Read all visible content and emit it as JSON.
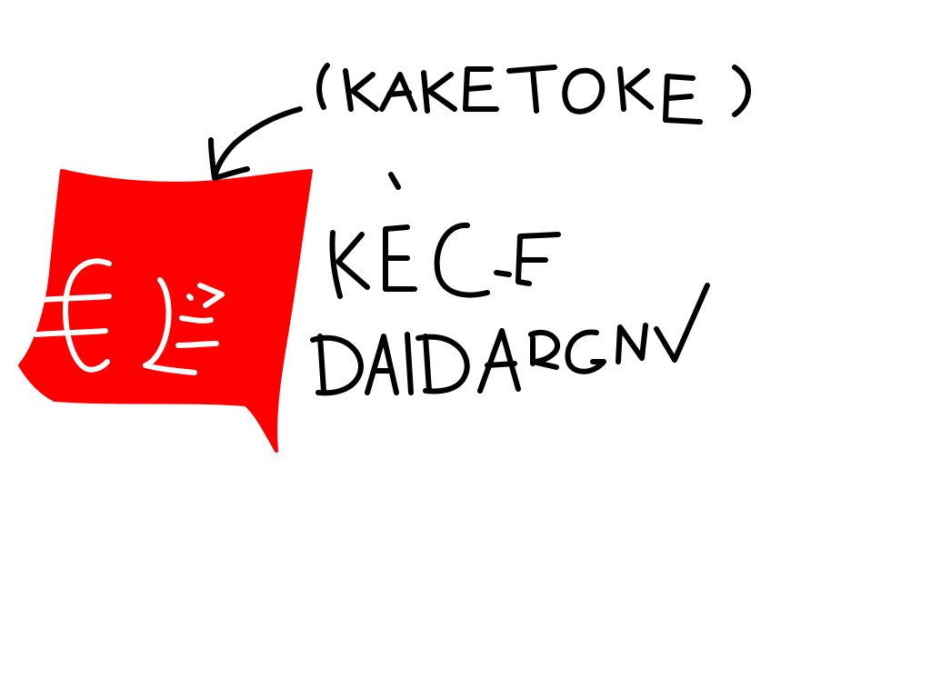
{
  "canvas": {
    "background_color": "#ffffff"
  },
  "flag": {
    "fill_color": "#ff0000",
    "symbol_color": "#ffffff",
    "symbol_text": "€Ü"
  },
  "annotation": {
    "label": "(KAKETOKE)",
    "arrow_target": "flag"
  },
  "caption": {
    "line1": "KÈCE",
    "line2": "DAIDARGN"
  },
  "ink_color": "#000000"
}
